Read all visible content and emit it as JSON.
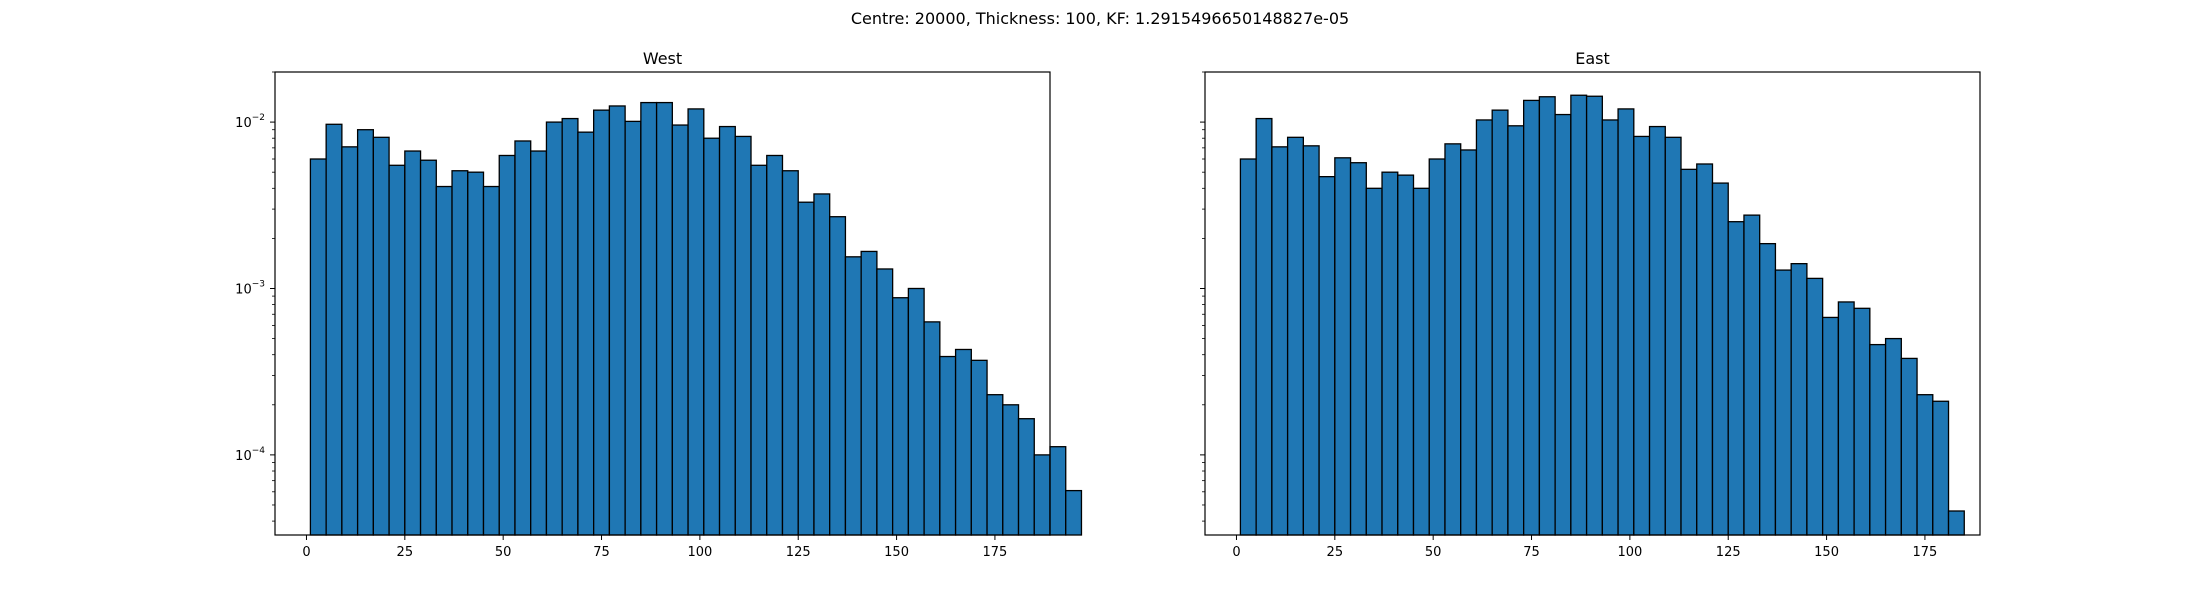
{
  "figure": {
    "suptitle": "Centre: 20000, Thickness: 100, KF: 1.2915496650148827e-05"
  },
  "chart_data": [
    {
      "type": "bar",
      "title": "West",
      "xlabel": "",
      "ylabel": "",
      "yscale": "log",
      "xlim": [
        -8,
        189
      ],
      "ylim": [
        3.3e-05,
        0.02
      ],
      "xticks": [
        0,
        25,
        50,
        75,
        100,
        125,
        150,
        175
      ],
      "yticks": [
        0.0001,
        0.001,
        0.01
      ],
      "ytick_labels": [
        [
          "10",
          "−4"
        ],
        [
          "10",
          "−3"
        ],
        [
          "10",
          "−2"
        ]
      ],
      "bin_start": 1,
      "bin_width": 4,
      "bar_color": "#1f77b4",
      "edge_color": "#000000",
      "grid": false,
      "values": [
        0.006,
        0.0097,
        0.0071,
        0.009,
        0.0081,
        0.0055,
        0.0067,
        0.0059,
        0.0041,
        0.0051,
        0.005,
        0.0041,
        0.0063,
        0.0077,
        0.0067,
        0.01,
        0.0105,
        0.0087,
        0.0118,
        0.0125,
        0.0101,
        0.0131,
        0.0131,
        0.0096,
        0.012,
        0.008,
        0.0094,
        0.0082,
        0.0055,
        0.0063,
        0.0051,
        0.0033,
        0.0037,
        0.0027,
        0.00155,
        0.00167,
        0.00131,
        0.00088,
        0.001,
        0.00063,
        0.00039,
        0.00043,
        0.00037,
        0.00023,
        0.0002,
        0.000165,
        0.0001,
        0.000112,
        6.1e-05
      ]
    },
    {
      "type": "bar",
      "title": "East",
      "xlabel": "",
      "ylabel": "",
      "yscale": "log",
      "xlim": [
        -8,
        189
      ],
      "ylim": [
        3.3e-05,
        0.02
      ],
      "xticks": [
        0,
        25,
        50,
        75,
        100,
        125,
        150,
        175
      ],
      "yticks": [
        0.0001,
        0.001,
        0.01
      ],
      "ytick_labels": [],
      "bin_start": 1,
      "bin_width": 4,
      "bar_color": "#1f77b4",
      "edge_color": "#000000",
      "grid": false,
      "values": [
        0.006,
        0.0105,
        0.0071,
        0.0081,
        0.0072,
        0.0047,
        0.0061,
        0.0057,
        0.004,
        0.005,
        0.0048,
        0.004,
        0.006,
        0.0074,
        0.0068,
        0.0103,
        0.0118,
        0.0095,
        0.0135,
        0.0142,
        0.0111,
        0.0145,
        0.0143,
        0.0103,
        0.012,
        0.0082,
        0.0094,
        0.0081,
        0.0052,
        0.0056,
        0.0043,
        0.00252,
        0.00276,
        0.00186,
        0.00129,
        0.00141,
        0.00115,
        0.00067,
        0.00083,
        0.00076,
        0.00046,
        0.0005,
        0.00038,
        0.00023,
        0.00021,
        4.6e-05
      ]
    }
  ]
}
